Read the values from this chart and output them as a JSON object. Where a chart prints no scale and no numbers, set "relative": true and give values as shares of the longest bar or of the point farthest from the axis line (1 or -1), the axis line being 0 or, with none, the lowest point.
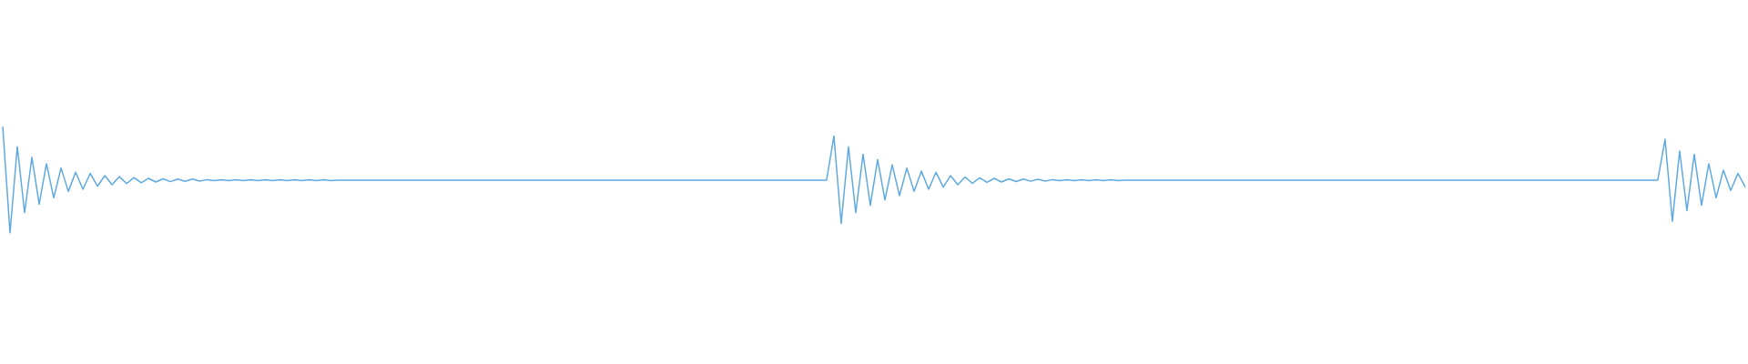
{
  "chart_data": {
    "type": "line",
    "relative": true,
    "color": "#5eaae0",
    "categories": [
      null,
      null,
      null,
      null,
      null,
      null,
      null,
      null,
      null,
      null,
      null,
      null,
      null,
      null,
      null,
      null,
      null,
      null,
      null,
      null,
      null,
      null,
      null,
      null,
      null,
      null,
      null,
      null,
      null,
      null,
      null,
      null,
      null,
      null,
      null,
      null,
      null,
      null,
      null,
      null,
      null,
      null,
      null,
      null,
      null,
      null,
      null,
      null,
      null,
      null,
      null,
      null,
      null,
      null,
      null,
      null,
      null,
      null,
      null,
      null,
      null,
      null,
      null,
      null,
      null,
      null,
      null,
      null,
      null,
      null,
      null,
      null,
      null,
      null,
      null,
      null,
      null,
      null,
      null,
      null,
      null,
      null,
      null,
      null,
      null,
      null,
      null,
      null,
      null,
      null,
      null,
      null,
      null,
      null,
      null,
      null,
      null,
      null,
      null,
      null,
      null,
      null,
      null,
      null,
      null,
      null,
      null,
      null,
      null,
      null,
      null,
      null,
      null,
      null,
      null,
      null,
      null,
      null,
      null,
      null,
      null,
      null,
      null,
      null,
      null,
      null,
      null,
      null,
      null,
      null,
      null,
      null,
      null,
      null,
      null,
      null,
      null,
      null,
      null,
      null,
      null,
      null,
      null,
      null,
      null,
      null,
      null,
      null,
      null,
      null,
      null,
      null,
      null,
      null,
      null,
      null,
      null,
      null,
      null,
      null,
      null,
      null,
      null,
      null,
      null,
      null,
      null,
      null,
      null,
      null,
      null,
      null,
      null,
      null,
      null,
      null,
      null,
      null,
      null,
      null,
      null,
      null,
      null,
      null,
      null,
      null,
      null,
      null,
      null,
      null,
      null,
      null,
      null,
      null,
      null,
      null,
      null,
      null,
      null,
      null,
      null,
      null,
      null,
      null,
      null,
      null,
      null,
      null,
      null,
      null,
      null,
      null,
      null,
      null,
      null,
      null,
      null,
      null,
      null,
      null,
      null,
      null,
      null,
      null,
      null,
      null,
      null,
      null,
      null,
      null,
      null,
      null,
      null,
      null,
      null,
      null,
      null,
      null,
      null,
      null
    ],
    "values": [
      1,
      0,
      0.81,
      0.19,
      0.71,
      0.27,
      0.65,
      0.33,
      0.61,
      0.39,
      0.57,
      0.41,
      0.56,
      0.44,
      0.538,
      0.453,
      0.529,
      0.464,
      0.52,
      0.472,
      0.513,
      0.479,
      0.509,
      0.482,
      0.507,
      0.485,
      0.506,
      0.487,
      0.501,
      0.492,
      0.501,
      0.492,
      0.501,
      0.492,
      0.501,
      0.492,
      0.501,
      0.492,
      0.501,
      0.492,
      0.501,
      0.492,
      0.501,
      0.492,
      0.501,
      0.492,
      0.496,
      0.496,
      0.496,
      0.496,
      0.496,
      0.496,
      0.496,
      0.496,
      0.496,
      0.496,
      0.496,
      0.496,
      0.496,
      0.496,
      0.496,
      0.496,
      0.496,
      0.496,
      0.496,
      0.496,
      0.496,
      0.496,
      0.496,
      0.496,
      0.496,
      0.496,
      0.496,
      0.496,
      0.496,
      0.496,
      0.496,
      0.496,
      0.496,
      0.496,
      0.496,
      0.496,
      0.496,
      0.496,
      0.496,
      0.496,
      0.496,
      0.496,
      0.496,
      0.496,
      0.496,
      0.496,
      0.496,
      0.496,
      0.496,
      0.496,
      0.496,
      0.496,
      0.496,
      0.496,
      0.496,
      0.496,
      0.496,
      0.496,
      0.496,
      0.496,
      0.496,
      0.496,
      0.496,
      0.496,
      0.496,
      0.496,
      0.496,
      0.496,
      0.91,
      0.09,
      0.81,
      0.19,
      0.74,
      0.26,
      0.69,
      0.31,
      0.64,
      0.35,
      0.61,
      0.39,
      0.58,
      0.41,
      0.57,
      0.43,
      0.538,
      0.453,
      0.526,
      0.466,
      0.518,
      0.475,
      0.513,
      0.479,
      0.509,
      0.483,
      0.507,
      0.486,
      0.505,
      0.488,
      0.501,
      0.492,
      0.501,
      0.492,
      0.501,
      0.492,
      0.501,
      0.492,
      0.501,
      0.492,
      0.496,
      0.496,
      0.496,
      0.496,
      0.496,
      0.496,
      0.496,
      0.496,
      0.496,
      0.496,
      0.496,
      0.496,
      0.496,
      0.496,
      0.496,
      0.496,
      0.496,
      0.496,
      0.496,
      0.496,
      0.496,
      0.496,
      0.496,
      0.496,
      0.496,
      0.496,
      0.496,
      0.496,
      0.496,
      0.496,
      0.496,
      0.496,
      0.496,
      0.496,
      0.496,
      0.496,
      0.496,
      0.496,
      0.496,
      0.496,
      0.496,
      0.496,
      0.496,
      0.496,
      0.496,
      0.496,
      0.496,
      0.496,
      0.496,
      0.496,
      0.496,
      0.496,
      0.496,
      0.496,
      0.496,
      0.496,
      0.496,
      0.496,
      0.496,
      0.496,
      0.496,
      0.496,
      0.496,
      0.496,
      0.496,
      0.496,
      0.496,
      0.496,
      0.496,
      0.496,
      0.496,
      0.496,
      0.496,
      0.496,
      0.88,
      0.11,
      0.77,
      0.21,
      0.74,
      0.26,
      0.65,
      0.33,
      0.59,
      0.4,
      0.56,
      0.43
    ]
  }
}
